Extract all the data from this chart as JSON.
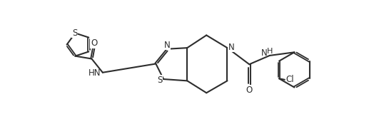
{
  "background_color": "#ffffff",
  "line_color": "#2d2d2d",
  "line_width": 1.5,
  "figsize": [
    5.17,
    1.81
  ],
  "dpi": 100,
  "xlim": [
    0,
    5.17
  ],
  "ylim": [
    0,
    1.81
  ],
  "font_size": 8.5
}
